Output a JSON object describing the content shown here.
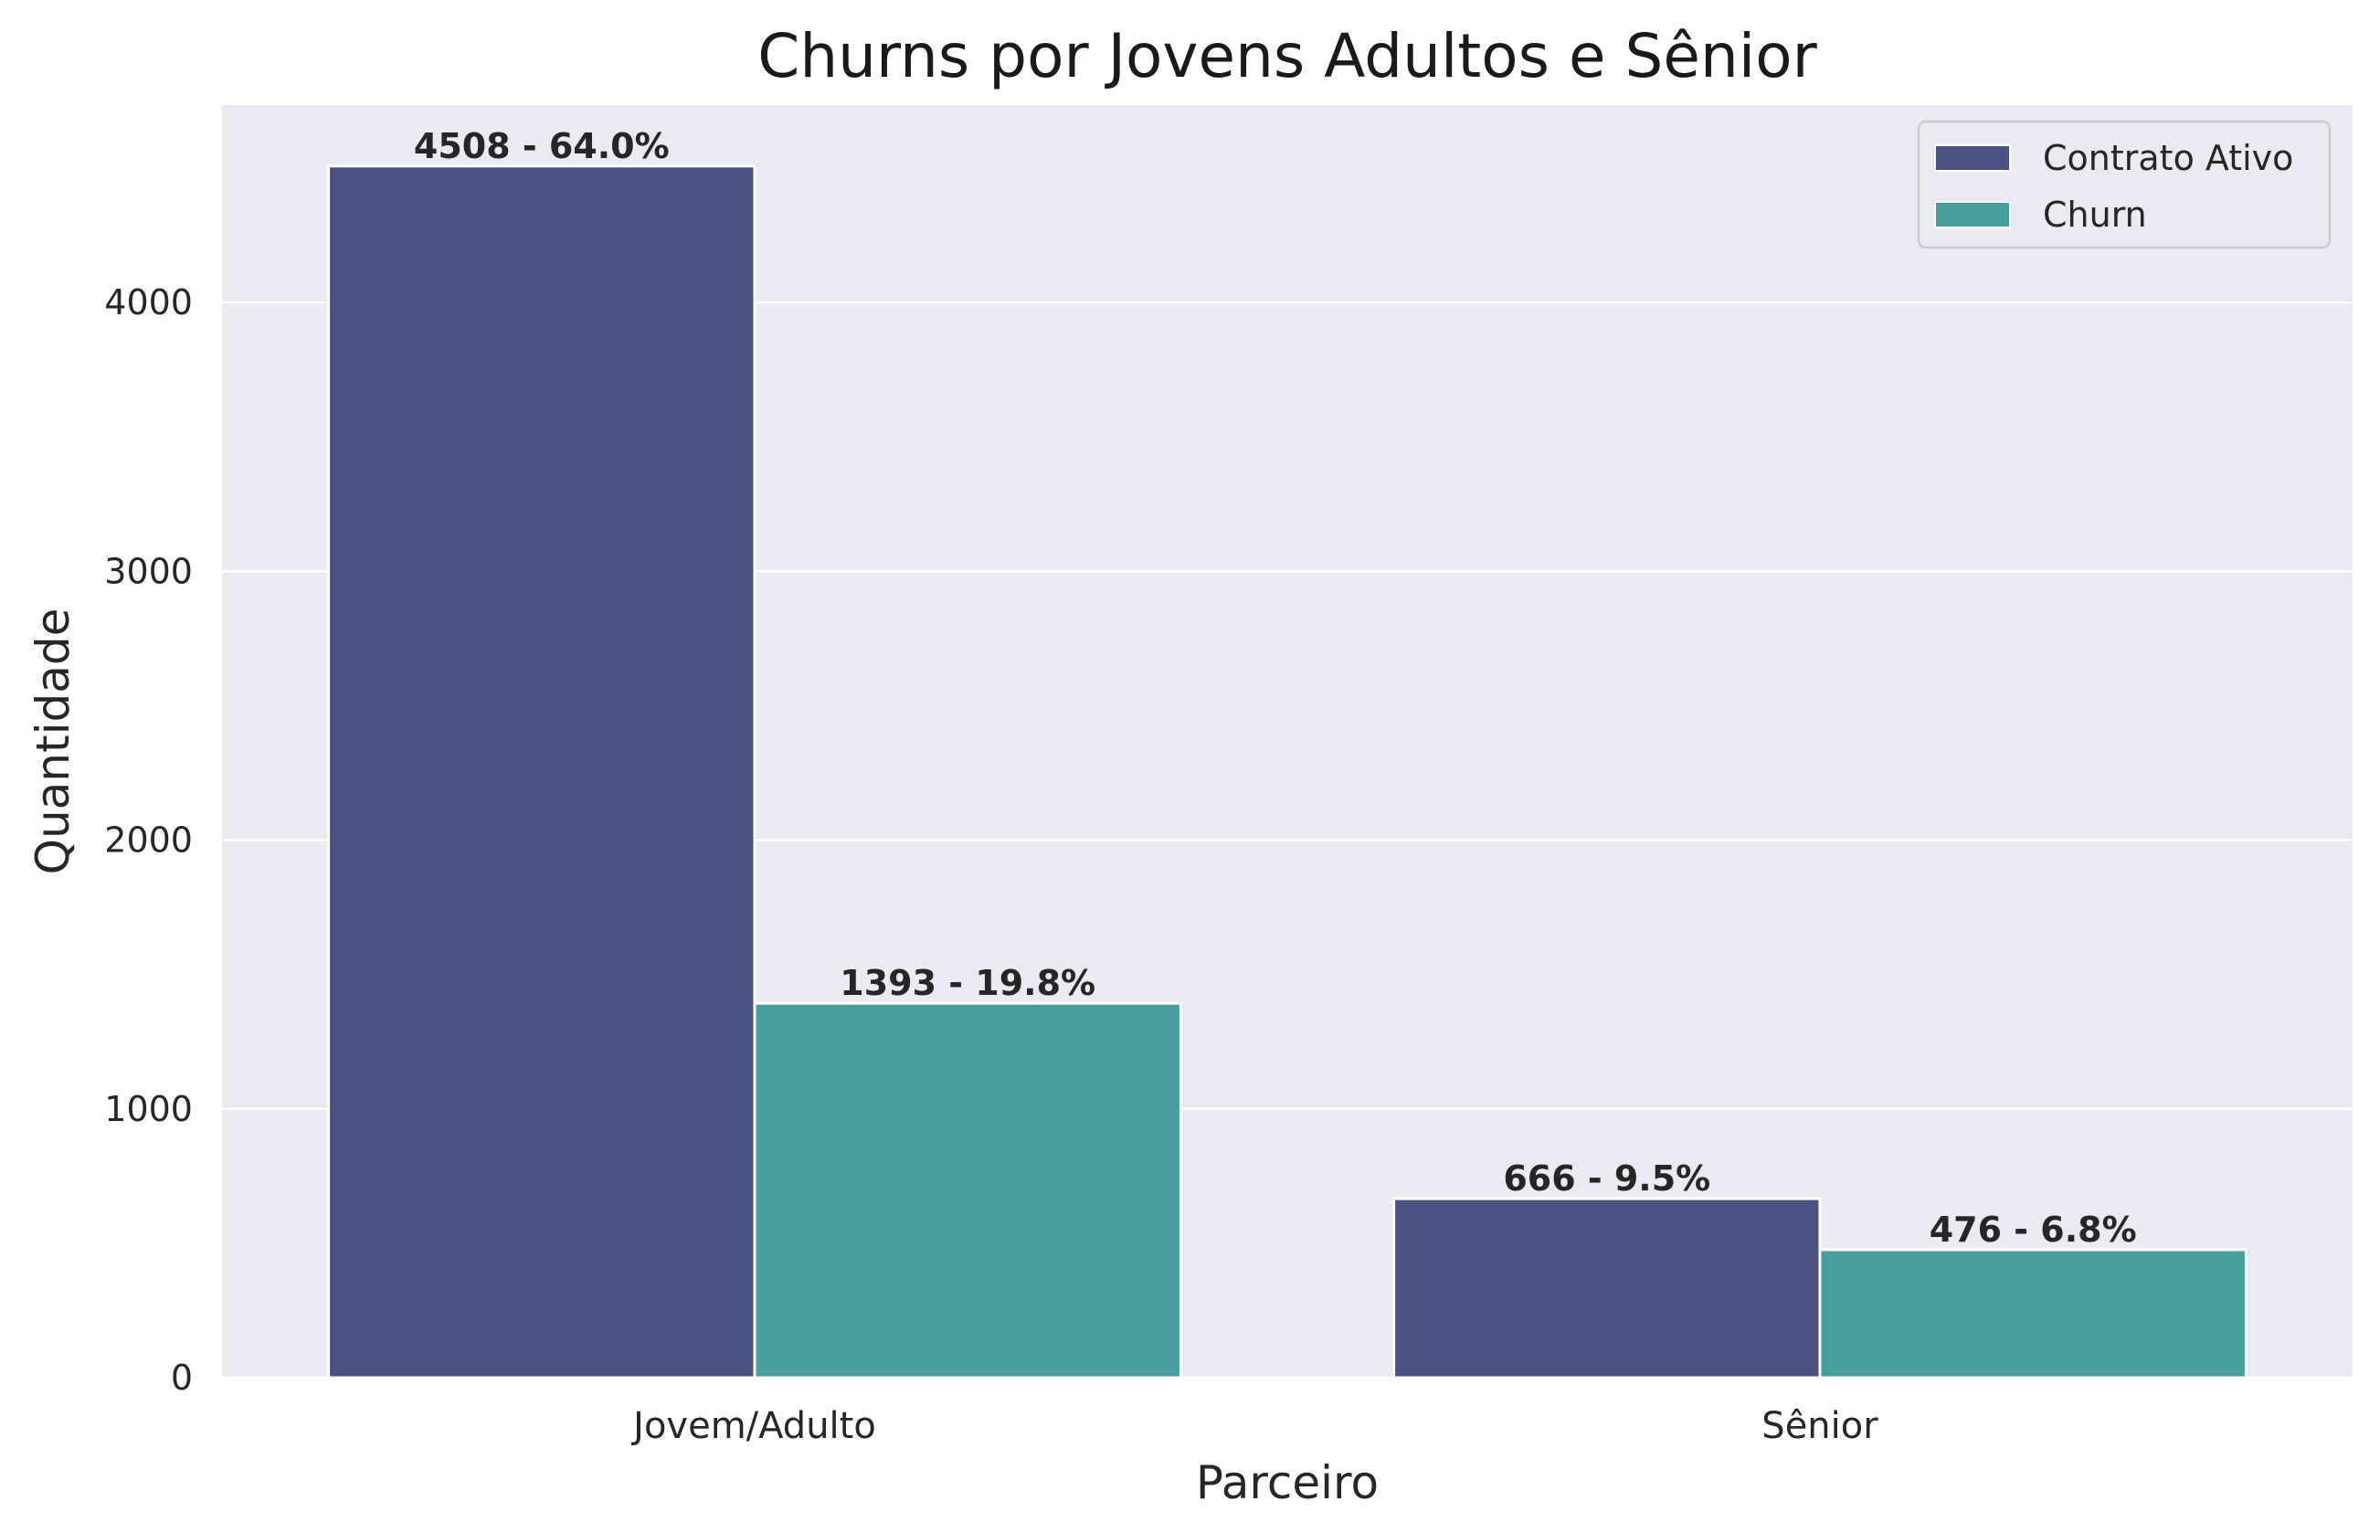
{
  "chart_data": {
    "type": "bar",
    "title": "Churns por Jovens Adultos e Sênior",
    "xlabel": "Parceiro",
    "ylabel": "Quantidade",
    "categories": [
      "Jovem/Adulto",
      "Sênior"
    ],
    "ylim": [
      0,
      4735
    ],
    "yticks": [
      0,
      1000,
      2000,
      3000,
      4000
    ],
    "grid": true,
    "legend_position": "top-right",
    "series": [
      {
        "name": "Contrato Ativo",
        "color": "#4a5284",
        "values": [
          4508,
          666
        ],
        "labels": [
          "4508 - 64.0%",
          "666 - 9.5%"
        ]
      },
      {
        "name": "Churn",
        "color": "#489e9d",
        "values": [
          1393,
          476
        ],
        "labels": [
          "1393 - 19.8%",
          "476 - 6.8%"
        ]
      }
    ]
  }
}
